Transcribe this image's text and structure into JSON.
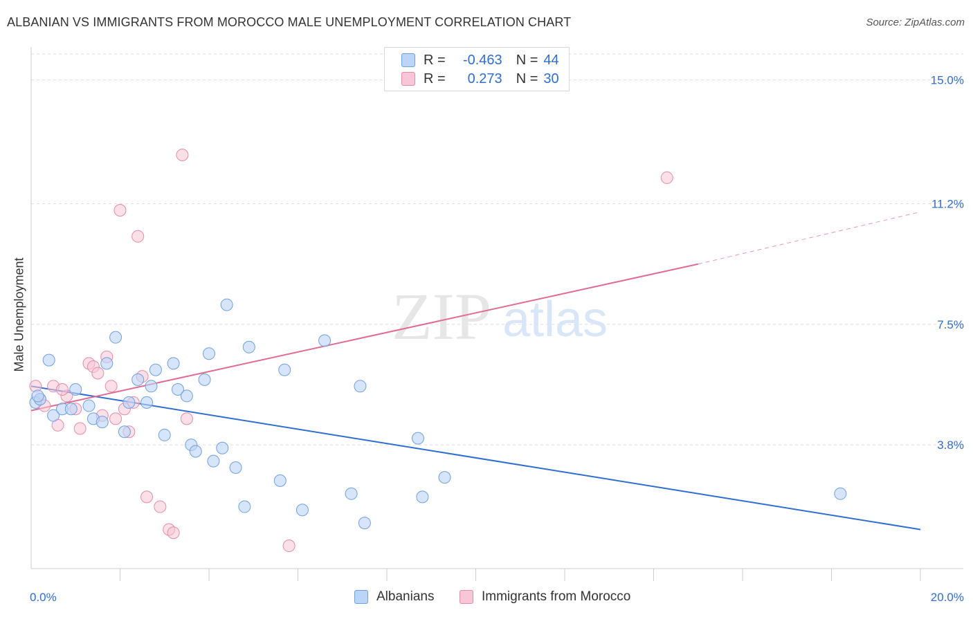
{
  "title": "ALBANIAN VS IMMIGRANTS FROM MOROCCO MALE UNEMPLOYMENT CORRELATION CHART",
  "source": "Source: ZipAtlas.com",
  "watermark": {
    "zip": "ZIP",
    "atlas": "atlas"
  },
  "legend": {
    "rows": [
      {
        "r_label": "R =",
        "r_value": "-0.463",
        "n_label": "N =",
        "n_value": "44"
      },
      {
        "r_label": "R =",
        "r_value": "0.273",
        "n_label": "N =",
        "n_value": "30"
      }
    ]
  },
  "bottom_legend": {
    "albanians": "Albanians",
    "morocco": "Immigrants from Morocco"
  },
  "chart_data": {
    "type": "scatter",
    "title": "ALBANIAN VS IMMIGRANTS FROM MOROCCO MALE UNEMPLOYMENT CORRELATION CHART",
    "xlabel": "",
    "ylabel": "Male Unemployment",
    "xlim": [
      0,
      20
    ],
    "ylim": [
      0,
      15.8
    ],
    "x_tick_labels": [
      "0.0%",
      "20.0%"
    ],
    "y_ticks": [
      3.8,
      7.5,
      11.2,
      15.0
    ],
    "y_tick_labels": [
      "3.8%",
      "7.5%",
      "11.2%",
      "15.0%"
    ],
    "grid": true,
    "legend_position": "top-center",
    "colors": {
      "albanians_fill": "#bcd4f6",
      "albanians_stroke": "#6f9fe0",
      "albanians_line": "#2f6ed1",
      "morocco_fill": "#f8c6d6",
      "morocco_stroke": "#e68aa8",
      "morocco_line": "#e06b93",
      "tick_label": "#2f6ed1"
    },
    "series": [
      {
        "name": "Albanians",
        "points": [
          [
            0.1,
            5.1
          ],
          [
            0.2,
            5.2
          ],
          [
            0.4,
            6.4
          ],
          [
            0.5,
            4.7
          ],
          [
            0.7,
            4.9
          ],
          [
            0.9,
            4.9
          ],
          [
            1.0,
            5.5
          ],
          [
            1.3,
            5.0
          ],
          [
            1.4,
            4.6
          ],
          [
            1.6,
            4.5
          ],
          [
            1.7,
            6.3
          ],
          [
            1.9,
            7.1
          ],
          [
            2.1,
            4.2
          ],
          [
            2.2,
            5.1
          ],
          [
            2.4,
            5.8
          ],
          [
            2.6,
            5.1
          ],
          [
            2.7,
            5.6
          ],
          [
            2.8,
            6.1
          ],
          [
            3.0,
            4.1
          ],
          [
            3.2,
            6.3
          ],
          [
            3.3,
            5.5
          ],
          [
            3.5,
            5.3
          ],
          [
            3.6,
            3.8
          ],
          [
            3.7,
            3.6
          ],
          [
            3.9,
            5.8
          ],
          [
            4.0,
            6.6
          ],
          [
            4.1,
            3.3
          ],
          [
            4.3,
            3.7
          ],
          [
            4.4,
            8.1
          ],
          [
            4.6,
            3.1
          ],
          [
            4.8,
            1.9
          ],
          [
            4.9,
            6.8
          ],
          [
            5.6,
            2.7
          ],
          [
            5.7,
            6.1
          ],
          [
            6.1,
            1.8
          ],
          [
            6.6,
            7.0
          ],
          [
            7.2,
            2.3
          ],
          [
            7.4,
            5.6
          ],
          [
            7.5,
            1.4
          ],
          [
            8.7,
            4.0
          ],
          [
            8.8,
            2.2
          ],
          [
            9.3,
            2.8
          ],
          [
            18.2,
            2.3
          ],
          [
            0.15,
            5.3
          ]
        ],
        "trend": {
          "x": [
            0,
            20
          ],
          "y": [
            5.6,
            1.2
          ]
        }
      },
      {
        "name": "Immigrants from Morocco",
        "points": [
          [
            0.1,
            5.6
          ],
          [
            0.2,
            5.2
          ],
          [
            0.5,
            5.6
          ],
          [
            0.6,
            4.4
          ],
          [
            0.8,
            5.3
          ],
          [
            1.0,
            4.9
          ],
          [
            1.1,
            4.3
          ],
          [
            1.3,
            6.3
          ],
          [
            1.4,
            6.2
          ],
          [
            1.5,
            6.0
          ],
          [
            1.6,
            4.7
          ],
          [
            1.7,
            6.5
          ],
          [
            1.8,
            5.6
          ],
          [
            1.9,
            4.6
          ],
          [
            2.0,
            11.0
          ],
          [
            2.1,
            4.9
          ],
          [
            2.2,
            4.2
          ],
          [
            2.3,
            5.1
          ],
          [
            2.4,
            10.2
          ],
          [
            2.5,
            5.9
          ],
          [
            2.6,
            2.2
          ],
          [
            2.9,
            1.9
          ],
          [
            3.1,
            1.2
          ],
          [
            3.2,
            1.1
          ],
          [
            3.4,
            12.7
          ],
          [
            3.5,
            4.6
          ],
          [
            5.8,
            0.7
          ],
          [
            14.3,
            12.0
          ],
          [
            0.3,
            5.0
          ],
          [
            0.7,
            5.5
          ]
        ],
        "trend": {
          "x": [
            0,
            15
          ],
          "y": [
            4.85,
            9.35
          ]
        },
        "trend_projection": {
          "x": [
            15,
            20
          ],
          "y": [
            9.35,
            10.95
          ]
        }
      }
    ]
  }
}
